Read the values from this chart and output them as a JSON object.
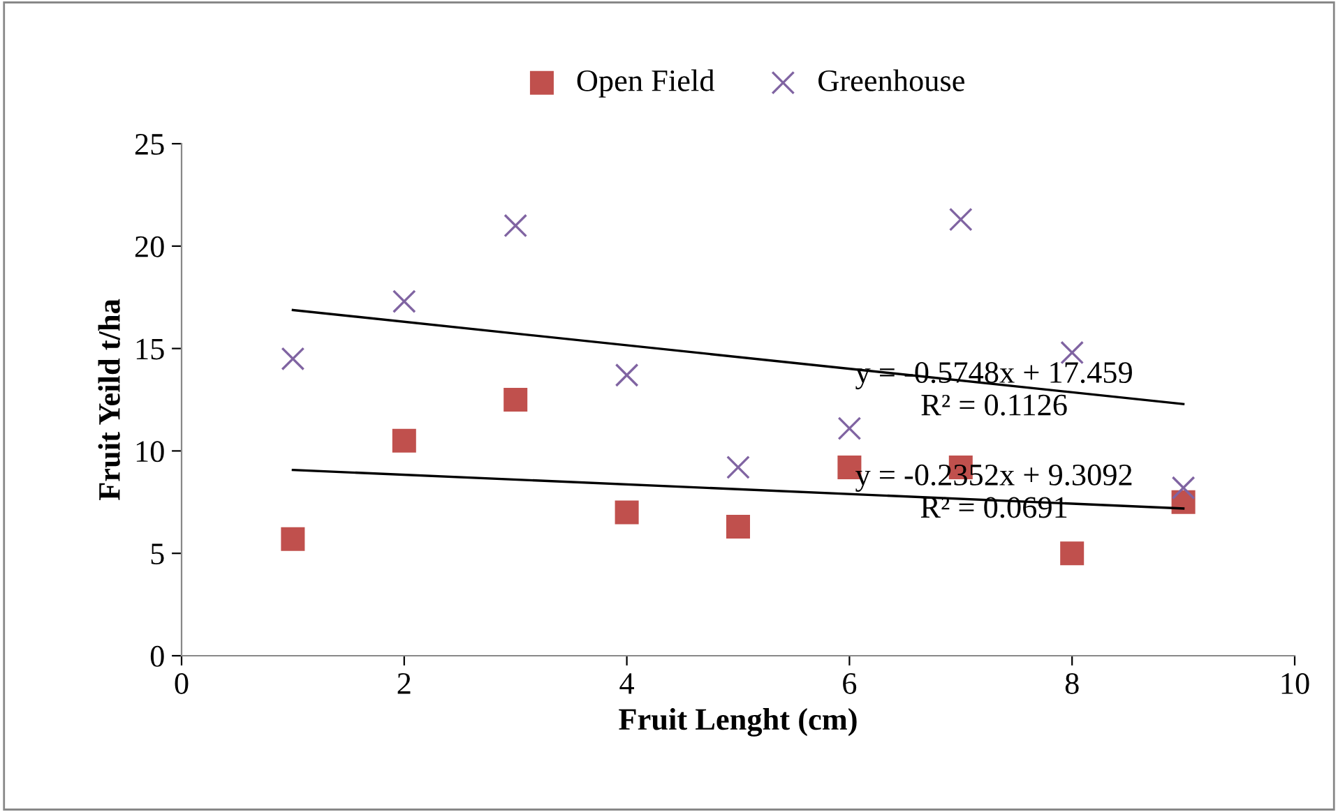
{
  "chart_data": {
    "type": "scatter",
    "xlabel": "Fruit Lenght (cm)",
    "ylabel": "Fruit Yeild t/ha",
    "xlim": [
      0,
      10
    ],
    "xticks": [
      0,
      2,
      4,
      6,
      8,
      10
    ],
    "ylim": [
      0,
      25
    ],
    "yticks": [
      0,
      5,
      10,
      15,
      20,
      25
    ],
    "grid": false,
    "legend": "top",
    "series": [
      {
        "name": "Open Field",
        "color": "#c0504d",
        "marker": "square",
        "x": [
          1,
          2,
          3,
          4,
          5,
          6,
          7,
          8,
          9
        ],
        "values": [
          5.7,
          10.5,
          12.5,
          7.0,
          6.3,
          9.2,
          9.2,
          5.0,
          7.5
        ]
      },
      {
        "name": "Greenhouse",
        "color": "#8064a2",
        "marker": "cross",
        "x": [
          1,
          2,
          3,
          4,
          5,
          6,
          7,
          8,
          9
        ],
        "values": [
          14.5,
          17.3,
          21.0,
          13.7,
          9.2,
          11.1,
          21.3,
          14.8,
          8.2
        ]
      },
      {
        "type": "line",
        "color": "#000000",
        "marker": "none",
        "x": [
          1,
          9
        ],
        "values": [
          16.88,
          12.29
        ]
      },
      {
        "type": "line",
        "color": "#000000",
        "marker": "none",
        "x": [
          1,
          9
        ],
        "values": [
          9.07,
          7.19
        ]
      }
    ],
    "annotations": [
      {
        "text": "y = -0.5748x + 17.459\nR² = 0.1126",
        "x": 7.3,
        "y": 12.9
      },
      {
        "text": "y = -0.2352x + 9.3092\nR² = 0.0691",
        "x": 7.3,
        "y": 7.9
      }
    ]
  }
}
